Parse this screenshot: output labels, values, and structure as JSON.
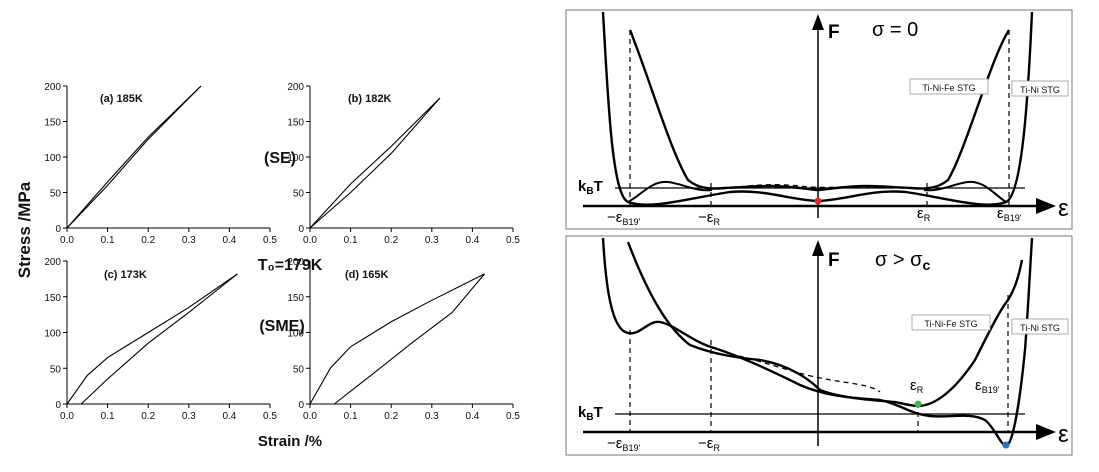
{
  "left_figure": {
    "y_axis_label": "Stress /MPa",
    "x_axis_label": "Strain /%",
    "label_se": "(SE)",
    "label_sme": "(SME)",
    "t0_label": "T₀=179K",
    "x_ticks": [
      "0.0",
      "0.1",
      "0.2",
      "0.3",
      "0.4",
      "0.5"
    ],
    "y_ticks": [
      "0",
      "50",
      "100",
      "150",
      "200"
    ],
    "panels": [
      {
        "label": "(a) 185K"
      },
      {
        "label": "(b) 182K"
      },
      {
        "label": "(c) 173K"
      },
      {
        "label": "(d) 165K"
      }
    ]
  },
  "chart_data": [
    {
      "type": "line",
      "title": "(a) 185K",
      "xlabel": "Strain /%",
      "ylabel": "Stress /MPa",
      "xlim": [
        0,
        0.5
      ],
      "ylim": [
        0,
        200
      ],
      "series": [
        {
          "x": [
            0,
            0.1,
            0.2,
            0.33
          ],
          "y": [
            0,
            65,
            128,
            200
          ]
        },
        {
          "x": [
            0.33,
            0.2,
            0.1,
            0
          ],
          "y": [
            200,
            125,
            60,
            0
          ]
        }
      ]
    },
    {
      "type": "line",
      "title": "(b) 182K",
      "xlabel": "Strain /%",
      "ylabel": "Stress /MPa",
      "xlim": [
        0,
        0.5
      ],
      "ylim": [
        0,
        200
      ],
      "series": [
        {
          "x": [
            0,
            0.1,
            0.2,
            0.32
          ],
          "y": [
            0,
            62,
            115,
            183
          ]
        },
        {
          "x": [
            0.32,
            0.2,
            0.1,
            0
          ],
          "y": [
            183,
            105,
            50,
            0
          ]
        }
      ]
    },
    {
      "type": "line",
      "title": "(c) 173K",
      "xlabel": "Strain /%",
      "ylabel": "Stress /MPa",
      "xlim": [
        0,
        0.5
      ],
      "ylim": [
        0,
        200
      ],
      "series": [
        {
          "x": [
            0,
            0.05,
            0.1,
            0.2,
            0.3,
            0.42
          ],
          "y": [
            0,
            40,
            65,
            100,
            135,
            182
          ]
        },
        {
          "x": [
            0.42,
            0.3,
            0.2,
            0.1,
            0.05,
            0.035
          ],
          "y": [
            182,
            128,
            85,
            35,
            8,
            0
          ]
        }
      ]
    },
    {
      "type": "line",
      "title": "(d) 165K",
      "xlabel": "Strain /%",
      "ylabel": "Stress /MPa",
      "xlim": [
        0,
        0.5
      ],
      "ylim": [
        0,
        200
      ],
      "series": [
        {
          "x": [
            0,
            0.05,
            0.1,
            0.2,
            0.3,
            0.43
          ],
          "y": [
            0,
            50,
            80,
            115,
            145,
            182
          ]
        },
        {
          "x": [
            0.43,
            0.35,
            0.25,
            0.15,
            0.1,
            0.06
          ],
          "y": [
            182,
            128,
            85,
            40,
            18,
            0
          ]
        }
      ]
    }
  ],
  "right_figure": {
    "top": {
      "axis_f": "F",
      "condition": "σ = 0",
      "kbt": "k",
      "kbt_sub": "B",
      "kbt_tail": "T",
      "epsilon": "ε",
      "stg_fe": "Ti-Ni-Fe STG",
      "stg_ni": "Ti-Ni STG",
      "labels": {
        "neg_b19": "−ε",
        "neg_b19_sub": "B19'",
        "neg_r": "−ε",
        "neg_r_sub": "R",
        "pos_r": "ε",
        "pos_r_sub": "R",
        "pos_b19": "ε",
        "pos_b19_sub": "B19'"
      }
    },
    "bottom": {
      "axis_f": "F",
      "condition": "σ > σ",
      "condition_sub": "c",
      "kbt": "k",
      "kbt_sub": "B",
      "kbt_tail": "T",
      "epsilon": "ε",
      "stg_fe": "Ti-Ni-Fe STG",
      "stg_ni": "Ti-Ni STG",
      "labels": {
        "neg_b19": "−ε",
        "neg_b19_sub": "B19'",
        "neg_r": "−ε",
        "neg_r_sub": "R",
        "pos_r": "ε",
        "pos_r_sub": "R",
        "pos_b19": "ε",
        "pos_b19_sub": "B19'"
      }
    },
    "marker_colors": {
      "red": "#e8262a",
      "green": "#3cb84a",
      "blue": "#2e6fc9"
    }
  }
}
